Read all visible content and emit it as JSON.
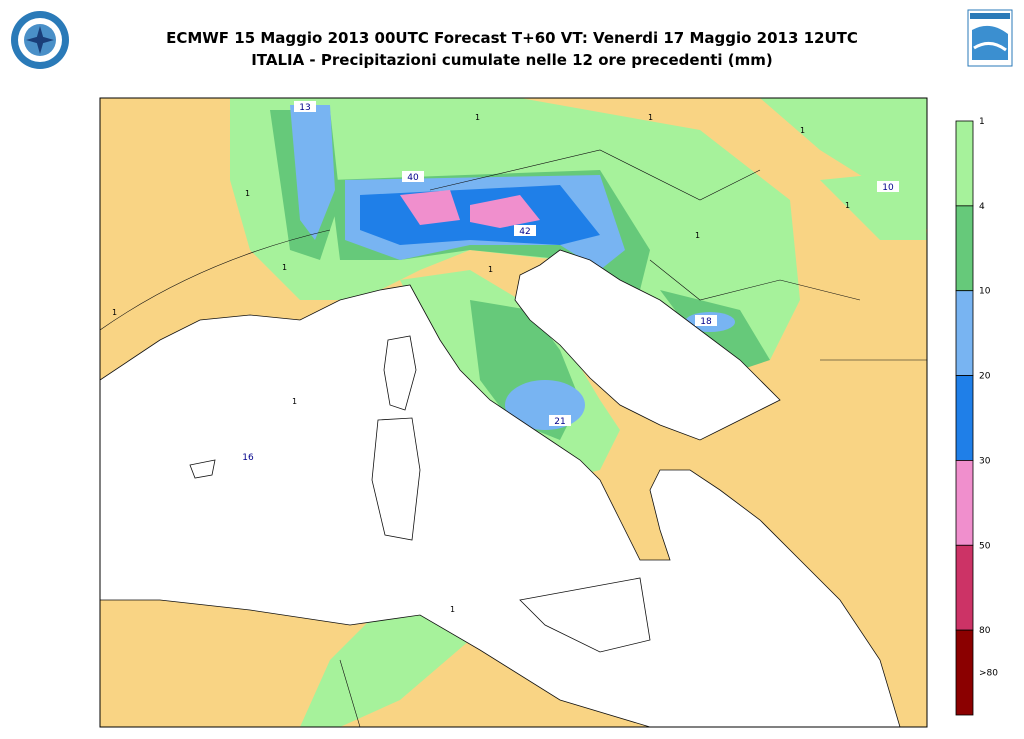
{
  "header": {
    "title_line1": "ECMWF 15 Maggio 2013 00UTC Forecast T+60 VT: Venerdi 17 Maggio 2013 12UTC",
    "title_line2": "ITALIA - Precipitazioni cumulate nelle 12 ore precedenti (mm)"
  },
  "map": {
    "labels": [
      "13",
      "40",
      "42",
      "10",
      "18",
      "21",
      "16"
    ],
    "contour_labels": [
      "1",
      "1",
      "1",
      "1",
      "1",
      "1",
      "1",
      "1",
      "1",
      "1",
      "1"
    ]
  },
  "legend": {
    "labels": [
      "1",
      "4",
      "10",
      "20",
      "30",
      "50",
      "80",
      ">80"
    ],
    "colors": [
      "#a6f29b",
      "#66c97a",
      "#78b4f2",
      "#1f7fe8",
      "#f08fcd",
      "#cc3366",
      "#8b0000"
    ]
  }
}
